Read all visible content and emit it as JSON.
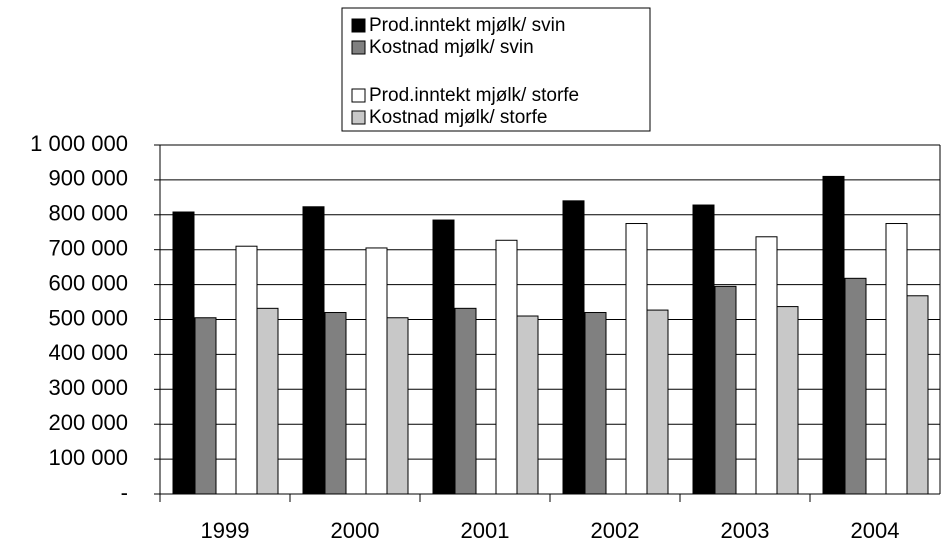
{
  "chart_data": {
    "type": "bar",
    "categories": [
      "1999",
      "2000",
      "2001",
      "2002",
      "2003",
      "2004"
    ],
    "series": [
      {
        "name": "Prod.inntekt mjølk/ svin",
        "color": "#000000",
        "values": [
          808000,
          823000,
          785000,
          840000,
          828000,
          910000
        ]
      },
      {
        "name": "Kostnad mjølk/ svin",
        "color": "#808080",
        "values": [
          505000,
          520000,
          532000,
          520000,
          595000,
          618000
        ]
      },
      {
        "name": "Prod.inntekt mjølk/ storfe",
        "color": "#ffffff",
        "values": [
          710000,
          705000,
          727000,
          775000,
          737000,
          775000
        ]
      },
      {
        "name": "Kostnad mjølk/ storfe",
        "color": "#c8c8c8",
        "values": [
          532000,
          505000,
          510000,
          527000,
          537000,
          568000
        ]
      }
    ],
    "ylim": [
      0,
      1000000
    ],
    "yticks": [
      {
        "value": 0,
        "label": "-"
      },
      {
        "value": 100000,
        "label": "100 000"
      },
      {
        "value": 200000,
        "label": "200 000"
      },
      {
        "value": 300000,
        "label": "300 000"
      },
      {
        "value": 400000,
        "label": "400 000"
      },
      {
        "value": 500000,
        "label": "500 000"
      },
      {
        "value": 600000,
        "label": "600 000"
      },
      {
        "value": 700000,
        "label": "700 000"
      },
      {
        "value": 800000,
        "label": "800 000"
      },
      {
        "value": 900000,
        "label": "900 000"
      },
      {
        "value": 1000000,
        "label": "1 000 000"
      }
    ],
    "grid": true,
    "legend": "top"
  }
}
